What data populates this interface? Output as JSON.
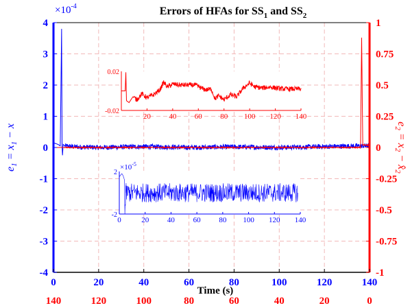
{
  "chart_data": {
    "type": "line",
    "title": {
      "pre": "Errors of HFAs for SS",
      "sub1": "1",
      "mid": " and SS",
      "sub2": "2"
    },
    "xlabel": "Time (s)",
    "xlim": [
      0,
      140
    ],
    "xticks": [
      "0",
      "20",
      "40",
      "60",
      "80",
      "100",
      "120",
      "140"
    ],
    "xticks_secondary": [
      "140",
      "120",
      "100",
      "80",
      "60",
      "40",
      "20",
      "0"
    ],
    "grid": true,
    "colors": {
      "left": "#0000ff",
      "right": "#ff0000",
      "grid": "#f2b8b8",
      "frame": "#000000"
    },
    "y_left": {
      "label": {
        "pre": "e",
        "sub": "1",
        "eq": " = x",
        "sub2": "1",
        "post": " − x"
      },
      "ylim": [
        -4,
        4
      ],
      "multiplier": "×10",
      "multiplier_exp": "-4",
      "ticks": [
        "-4",
        "-3",
        "-2",
        "-1",
        "0",
        "1",
        "2",
        "3",
        "4"
      ]
    },
    "y_right": {
      "label": {
        "pre": "e",
        "sub": "2",
        "eq": " = x",
        "sub2": "2",
        "post": " − x̂",
        "sub3": "2"
      },
      "ylim": [
        -1,
        1
      ],
      "ticks": [
        "-1",
        "-0.75",
        "-0.5",
        "-0.25",
        "0",
        "0.25",
        "0.5",
        "0.75",
        "1"
      ]
    },
    "series": [
      {
        "axis": "left",
        "color": "#0000ff",
        "x": [
          0,
          2,
          3,
          3.6,
          3.8,
          4,
          4.3,
          5,
          10,
          20,
          40,
          60,
          80,
          100,
          120,
          135,
          140
        ],
        "y": [
          0.15,
          0.1,
          0.05,
          3.8,
          0.05,
          -0.25,
          0.1,
          0.05,
          0.02,
          0.0,
          0.03,
          0.0,
          0.02,
          0.0,
          0.03,
          0.05,
          0.05
        ],
        "noise_amplitude": 0.08
      },
      {
        "axis": "right",
        "color": "#ff0000",
        "x": [
          0,
          5,
          10,
          20,
          40,
          60,
          80,
          100,
          120,
          136,
          136.5,
          137,
          140
        ],
        "y": [
          0.0,
          0.0,
          0.0,
          0.0,
          0.0,
          0.0,
          0.0,
          0.0,
          0.0,
          0.0,
          0.88,
          0.02,
          0.02
        ],
        "noise_amplitude": 0.004
      }
    ],
    "insets": [
      {
        "name": "red-inset",
        "color": "#ff0000",
        "xlim": [
          0,
          140
        ],
        "ylim": [
          -0.02,
          0.02
        ],
        "xticks": [
          "20",
          "40",
          "60",
          "80",
          "100",
          "120",
          "140"
        ],
        "yticks": [
          "-0.02",
          "0.02"
        ],
        "x": [
          0,
          3,
          3.5,
          4,
          6,
          9,
          12,
          16,
          20,
          25,
          30,
          33,
          36,
          40,
          46,
          52,
          58,
          62,
          66,
          70,
          73,
          76,
          80,
          85,
          90,
          95,
          100,
          104,
          110,
          116,
          120,
          126,
          132,
          140
        ],
        "y": [
          0.0,
          0.0,
          0.019,
          -0.01,
          -0.012,
          -0.006,
          -0.009,
          -0.003,
          -0.007,
          -0.004,
          0.001,
          0.009,
          0.004,
          0.007,
          0.006,
          0.006,
          0.006,
          0.003,
          0.001,
          0.002,
          -0.008,
          -0.005,
          -0.009,
          -0.004,
          -0.006,
          0.003,
          0.008,
          0.004,
          0.003,
          0.004,
          0.003,
          0.002,
          0.002,
          0.002
        ],
        "noise_amplitude": 0.0025
      },
      {
        "name": "blue-inset",
        "color": "#0000ff",
        "xlim": [
          0,
          140
        ],
        "ylim": [
          -2,
          2
        ],
        "multiplier": "×10",
        "multiplier_exp": "-5",
        "xticks": [
          "0",
          "20",
          "40",
          "60",
          "80",
          "100",
          "120",
          "140"
        ],
        "yticks": [
          "2",
          "-2"
        ],
        "x": [
          0,
          2,
          3,
          4,
          4.3,
          5,
          20,
          40,
          60,
          80,
          100,
          120,
          138
        ],
        "y": [
          1.5,
          1.8,
          1.6,
          1.2,
          -2.0,
          0.0,
          0.0,
          0.0,
          0.0,
          0.0,
          0.0,
          0.0,
          0.0
        ],
        "noise_amplitude": 0.9
      }
    ]
  }
}
